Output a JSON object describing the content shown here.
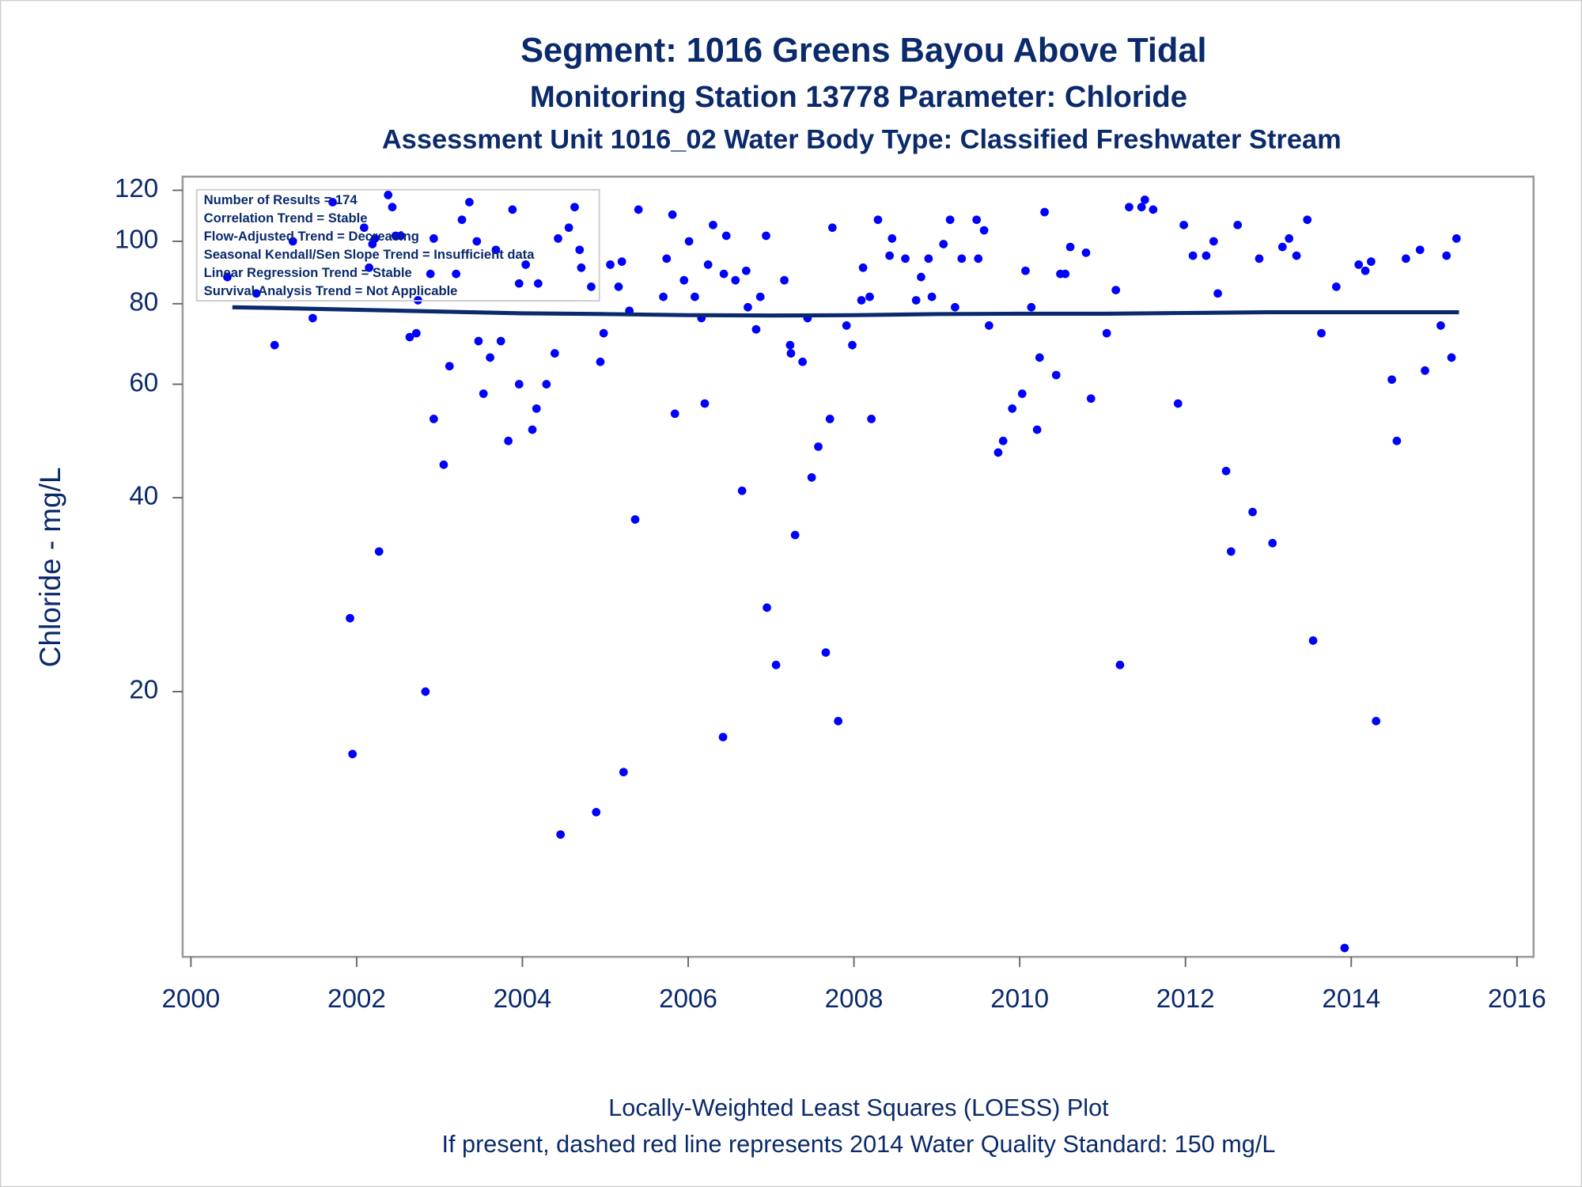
{
  "chart_data": {
    "type": "scatter",
    "title": "Segment: 1016  Greens Bayou Above Tidal",
    "subtitle": "Monitoring Station 13778 Parameter: Chloride",
    "subtitle2": "Assessment Unit 1016_02   Water Body Type: Classified Freshwater Stream",
    "ylabel": "Chloride - mg/L",
    "annotations": [
      "Number of Results = 174",
      "Correlation Trend = Stable",
      "Flow-Adjusted Trend = Decreasing",
      "Seasonal Kendall/Sen Slope Trend = Insufficient data",
      "Linear Regression Trend = Stable",
      "Survival Analysis Trend = Not Applicable"
    ],
    "footnotes": [
      "Locally-Weighted Least Squares (LOESS) Plot",
      "If present, dashed red line represents 2014 Water Quality Standard: 150    mg/L"
    ],
    "xlim": [
      1999.9,
      2016.2
    ],
    "xticks": [
      2000,
      2002,
      2004,
      2006,
      2008,
      2010,
      2012,
      2014,
      2016
    ],
    "ylim": [
      7.75,
      126
    ],
    "yticks": [
      20,
      40,
      60,
      80,
      100,
      120
    ],
    "yscale": "log",
    "series": [
      {
        "type": "scatter",
        "color": "#0000ff",
        "x": [
          2000.44,
          2000.79,
          2001.01,
          2001.23,
          2001.47,
          2001.71,
          2001.92,
          2001.95,
          2002.09,
          2002.15,
          2002.19,
          2002.22,
          2002.27,
          2002.38,
          2002.43,
          2002.47,
          2002.53,
          2002.64,
          2002.72,
          2002.74,
          2002.83,
          2002.89,
          2002.93,
          2002.93,
          2003.05,
          2003.12,
          2003.2,
          2003.27,
          2003.36,
          2003.45,
          2003.47,
          2003.53,
          2003.61,
          2003.68,
          2003.74,
          2003.83,
          2003.88,
          2003.96,
          2003.96,
          2004.04,
          2004.12,
          2004.17,
          2004.19,
          2004.29,
          2004.39,
          2004.43,
          2004.46,
          2004.56,
          2004.63,
          2004.69,
          2004.71,
          2004.83,
          2004.89,
          2004.94,
          2004.98,
          2005.06,
          2005.16,
          2005.2,
          2005.22,
          2005.29,
          2005.36,
          2005.4,
          2005.7,
          2005.74,
          2005.81,
          2005.84,
          2005.95,
          2006.01,
          2006.08,
          2006.16,
          2006.2,
          2006.24,
          2006.3,
          2006.42,
          2006.43,
          2006.46,
          2006.57,
          2006.65,
          2006.7,
          2006.72,
          2006.82,
          2006.87,
          2006.94,
          2006.95,
          2007.06,
          2007.16,
          2007.23,
          2007.24,
          2007.29,
          2007.38,
          2007.44,
          2007.49,
          2007.57,
          2007.66,
          2007.71,
          2007.74,
          2007.81,
          2007.91,
          2007.98,
          2008.09,
          2008.11,
          2008.19,
          2008.21,
          2008.29,
          2008.43,
          2008.46,
          2008.62,
          2008.75,
          2008.81,
          2008.9,
          2008.94,
          2009.08,
          2009.16,
          2009.22,
          2009.3,
          2009.48,
          2009.5,
          2009.57,
          2009.63,
          2009.74,
          2009.8,
          2009.91,
          2010.03,
          2010.07,
          2010.14,
          2010.21,
          2010.24,
          2010.3,
          2010.44,
          2010.49,
          2010.55,
          2010.61,
          2010.8,
          2010.86,
          2011.05,
          2011.16,
          2011.21,
          2011.32,
          2011.47,
          2011.51,
          2011.61,
          2011.91,
          2011.98,
          2012.09,
          2012.25,
          2012.34,
          2012.39,
          2012.49,
          2012.55,
          2012.63,
          2012.81,
          2012.89,
          2013.05,
          2013.17,
          2013.25,
          2013.34,
          2013.47,
          2013.54,
          2013.64,
          2013.82,
          2013.92,
          2014.09,
          2014.17,
          2014.24,
          2014.3,
          2014.49,
          2014.55,
          2014.66,
          2014.83,
          2014.89,
          2015.08,
          2015.15,
          2015.21,
          2015.27
        ],
        "values": [
          88,
          83,
          69,
          100,
          76,
          115,
          26,
          16,
          105,
          91,
          99,
          101,
          33,
          118,
          113,
          102,
          102,
          71,
          72,
          81,
          20,
          89,
          53,
          101,
          45,
          64,
          89,
          108,
          115,
          100,
          70,
          58,
          66,
          97,
          70,
          49,
          112,
          60,
          86,
          92,
          51,
          55,
          86,
          60,
          67,
          101,
          12,
          105,
          113,
          97,
          91,
          85,
          13,
          65,
          72,
          92,
          85,
          93,
          15,
          78,
          37,
          112,
          82,
          94,
          110,
          54,
          87,
          100,
          82,
          76,
          56,
          92,
          106,
          17,
          89,
          102,
          87,
          41,
          90,
          79,
          73,
          82,
          102,
          27,
          22,
          87,
          69,
          67,
          35,
          65,
          76,
          43,
          48,
          23,
          53,
          105,
          18,
          74,
          69,
          81,
          91,
          82,
          53,
          108,
          95,
          101,
          94,
          81,
          88,
          94,
          82,
          99,
          108,
          79,
          94,
          108,
          94,
          104,
          74,
          47,
          49,
          55,
          58,
          90,
          79,
          51,
          66,
          111,
          62,
          89,
          89,
          98,
          96,
          57,
          72,
          84,
          22,
          113,
          113,
          116,
          112,
          56,
          106,
          95,
          95,
          100,
          83,
          44,
          33,
          106,
          38,
          94,
          34,
          98,
          101,
          95,
          108,
          24,
          72,
          85,
          8,
          92,
          90,
          93,
          18,
          61,
          49,
          94,
          97,
          63,
          74,
          95,
          66,
          101
        ]
      },
      {
        "type": "line",
        "color": "#0b2a6b",
        "x": [
          2000.5,
          2001,
          2002,
          2003,
          2004,
          2005,
          2006,
          2007,
          2008,
          2009,
          2010,
          2011,
          2012,
          2013,
          2014,
          2015.3
        ],
        "values": [
          79,
          78.8,
          78.3,
          77.8,
          77.3,
          77.1,
          76.8,
          76.7,
          76.8,
          77.1,
          77.2,
          77.2,
          77.4,
          77.6,
          77.6,
          77.6
        ]
      }
    ]
  }
}
